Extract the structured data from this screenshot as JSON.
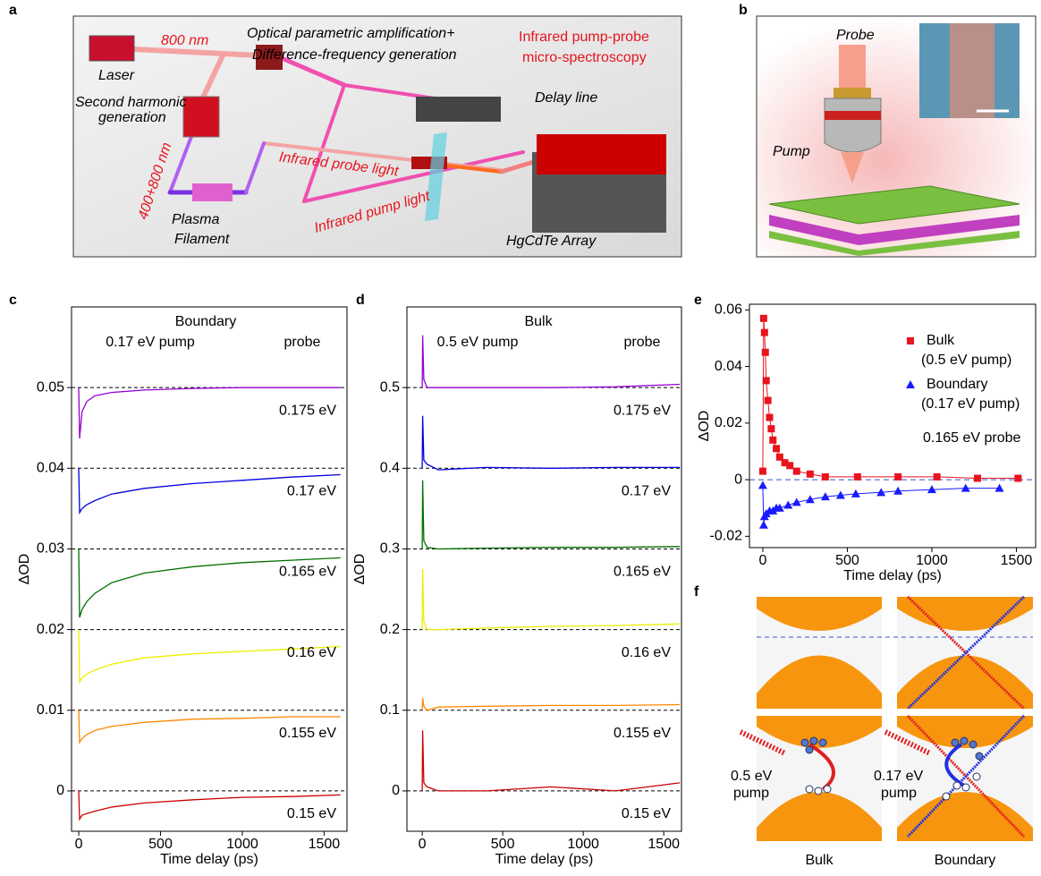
{
  "panel_labels": [
    "a",
    "b",
    "c",
    "d",
    "e",
    "f"
  ],
  "figure_a": {
    "texts": [
      "800 nm",
      "Laser",
      "Optical parametric amplification+",
      "Difference-frequency generation",
      "Infrared pump-probe",
      "micro-spectroscopy",
      "Delay line",
      "Second harmonic",
      "generation",
      "400+800 nm",
      "Infrared probe light",
      "Infrared pump light",
      "Plasma",
      "Filament",
      "HgCdTe Array"
    ]
  },
  "figure_b": {
    "texts": [
      "Probe",
      "Pump"
    ]
  },
  "figure_f": {
    "texts": [
      "0.5 eV",
      "pump",
      "0.17 eV",
      "pump",
      "Bulk",
      "Boundary"
    ]
  },
  "chart_data": [
    {
      "type": "line",
      "title": "Boundary",
      "title_color": "#1a1aff",
      "annotations": [
        "0.17 eV pump",
        "probe"
      ],
      "xlabel": "Time delay (ps)",
      "ylabel": "ΔOD",
      "xlim": [
        -44,
        1640
      ],
      "ylim": [
        -0.005,
        0.06
      ],
      "xticks": [
        0,
        500,
        1000,
        1500
      ],
      "yticks": [
        0,
        0.01,
        0.02,
        0.03,
        0.04,
        0.05
      ],
      "dashed_grid": true,
      "x": [
        0,
        5,
        20,
        50,
        100,
        200,
        400,
        700,
        1000,
        1300,
        1600
      ],
      "series": [
        {
          "name": "0.175 eV",
          "color": "#9400d3",
          "values": [
            0.05,
            0.0437,
            0.047,
            0.0483,
            0.049,
            0.0494,
            0.0497,
            0.0499,
            0.05,
            0.05,
            0.05
          ]
        },
        {
          "name": "0.17 eV",
          "color": "#0000dd",
          "values": [
            0.04,
            0.0345,
            0.035,
            0.0355,
            0.036,
            0.0368,
            0.0375,
            0.0381,
            0.0385,
            0.0389,
            0.0392
          ]
        },
        {
          "name": "0.165 eV",
          "color": "#007000",
          "values": [
            0.03,
            0.0215,
            0.0225,
            0.0235,
            0.0245,
            0.0258,
            0.027,
            0.0278,
            0.0283,
            0.0286,
            0.0289
          ]
        },
        {
          "name": "0.16 eV",
          "color": "#eeee00",
          "values": [
            0.02,
            0.0135,
            0.014,
            0.0145,
            0.015,
            0.0157,
            0.0165,
            0.017,
            0.0173,
            0.0176,
            0.0179
          ]
        },
        {
          "name": "0.155 eV",
          "color": "#ff8800",
          "values": [
            0.01,
            0.006,
            0.0065,
            0.007,
            0.0075,
            0.008,
            0.0085,
            0.0089,
            0.009,
            0.0092,
            0.0092
          ]
        },
        {
          "name": "0.15 eV",
          "color": "#cc0000",
          "values": [
            0,
            -0.0035,
            -0.003,
            -0.0028,
            -0.0025,
            -0.002,
            -0.0015,
            -0.0011,
            -0.0008,
            -0.0007,
            -0.0005
          ]
        }
      ]
    },
    {
      "type": "line",
      "title": "Bulk",
      "title_color": "#e8141e",
      "annotations": [
        "0.5 eV pump",
        "probe"
      ],
      "xlabel": "Time delay (ps)",
      "ylabel": "ΔOD",
      "xlim": [
        -95,
        1610
      ],
      "ylim": [
        -0.05,
        0.6
      ],
      "xticks": [
        0,
        500,
        1000,
        1500
      ],
      "yticks": [
        0,
        0.1,
        0.2,
        0.3,
        0.4,
        0.5
      ],
      "dashed_grid": true,
      "x": [
        0,
        3,
        10,
        30,
        100,
        400,
        800,
        1200,
        1600
      ],
      "series": [
        {
          "name": "0.175 eV",
          "color": "#9400d3",
          "values": [
            0.5,
            0.565,
            0.51,
            0.5,
            0.5,
            0.5,
            0.5,
            0.501,
            0.504
          ]
        },
        {
          "name": "0.17 eV",
          "color": "#0000dd",
          "values": [
            0.4,
            0.465,
            0.41,
            0.405,
            0.398,
            0.401,
            0.4,
            0.401,
            0.401
          ]
        },
        {
          "name": "0.165 eV",
          "color": "#007000",
          "values": [
            0.3,
            0.385,
            0.31,
            0.302,
            0.3,
            0.301,
            0.302,
            0.302,
            0.303
          ]
        },
        {
          "name": "0.16 eV",
          "color": "#eeee00",
          "values": [
            0.2,
            0.275,
            0.21,
            0.2,
            0.2,
            0.202,
            0.204,
            0.205,
            0.207
          ]
        },
        {
          "name": "0.155 eV",
          "color": "#ff8800",
          "values": [
            0.1,
            0.115,
            0.105,
            0.1,
            0.104,
            0.105,
            0.106,
            0.106,
            0.107
          ]
        },
        {
          "name": "0.15 eV",
          "color": "#cc0000",
          "values": [
            0,
            0.075,
            0.01,
            0.005,
            0,
            0,
            0.005,
            0,
            0.01
          ]
        }
      ]
    },
    {
      "type": "scatter",
      "xlabel": "Time delay (ps)",
      "ylabel": "ΔOD",
      "xlim": [
        -79,
        1614
      ],
      "ylim": [
        -0.024,
        0.062
      ],
      "xticks": [
        0,
        500,
        1000,
        1500
      ],
      "yticks": [
        -0.02,
        0,
        0.02,
        0.04,
        0.06
      ],
      "hline": 0,
      "hline_color": "#3355cc",
      "annotations": [
        "0.165 eV probe"
      ],
      "series": [
        {
          "name": "Bulk",
          "label": "(0.5 eV pump)",
          "color": "#e8141e",
          "marker": "square",
          "x": [
            0,
            5,
            10,
            15,
            20,
            30,
            40,
            50,
            60,
            80,
            100,
            130,
            160,
            200,
            280,
            370,
            560,
            800,
            1030,
            1270,
            1510
          ],
          "values": [
            0.003,
            0.057,
            0.052,
            0.045,
            0.035,
            0.028,
            0.022,
            0.018,
            0.014,
            0.011,
            0.008,
            0.006,
            0.005,
            0.003,
            0.002,
            0.001,
            0.001,
            0.001,
            0.001,
            0.0005,
            0.0005
          ]
        },
        {
          "name": "Boundary",
          "label": "(0.17 eV pump)",
          "color": "#1a1aff",
          "marker": "triangle",
          "x": [
            0,
            5,
            10,
            20,
            40,
            60,
            80,
            100,
            150,
            200,
            280,
            370,
            460,
            550,
            700,
            800,
            1000,
            1200,
            1400
          ],
          "values": [
            -0.002,
            -0.016,
            -0.013,
            -0.012,
            -0.011,
            -0.011,
            -0.01,
            -0.01,
            -0.009,
            -0.008,
            -0.007,
            -0.006,
            -0.0055,
            -0.005,
            -0.0045,
            -0.004,
            -0.0035,
            -0.003,
            -0.003
          ]
        }
      ]
    }
  ]
}
